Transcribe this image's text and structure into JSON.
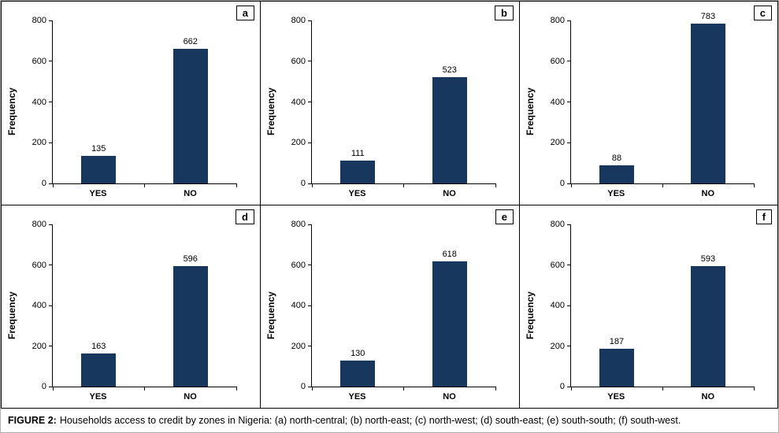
{
  "figure": {
    "caption_prefix": "FIGURE 2:",
    "caption_text": "Households access to credit by zones in Nigeria: (a) north-central; (b) north-east; (c) north-west; (d) south-east; (e) south-south; (f) south-west."
  },
  "style": {
    "bar_color": "#17375E",
    "axis_color": "#000000"
  },
  "chart_data": [
    {
      "type": "bar",
      "panel": "a",
      "zone": "north-central",
      "categories": [
        "YES",
        "NO"
      ],
      "values": [
        135,
        662
      ],
      "ylabel": "Frequency",
      "ylim": [
        0,
        800
      ],
      "yticks": [
        0,
        200,
        400,
        600,
        800
      ],
      "grid": false,
      "legend": false
    },
    {
      "type": "bar",
      "panel": "b",
      "zone": "north-east",
      "categories": [
        "YES",
        "NO"
      ],
      "values": [
        111,
        523
      ],
      "ylabel": "Frequency",
      "ylim": [
        0,
        800
      ],
      "yticks": [
        0,
        200,
        400,
        600,
        800
      ],
      "grid": false,
      "legend": false
    },
    {
      "type": "bar",
      "panel": "c",
      "zone": "north-west",
      "categories": [
        "YES",
        "NO"
      ],
      "values": [
        88,
        783
      ],
      "ylabel": "Frequency",
      "ylim": [
        0,
        800
      ],
      "yticks": [
        0,
        200,
        400,
        600,
        800
      ],
      "grid": false,
      "legend": false
    },
    {
      "type": "bar",
      "panel": "d",
      "zone": "south-east",
      "categories": [
        "YES",
        "NO"
      ],
      "values": [
        163,
        596
      ],
      "ylabel": "Frequency",
      "ylim": [
        0,
        800
      ],
      "yticks": [
        0,
        200,
        400,
        600,
        800
      ],
      "grid": false,
      "legend": false
    },
    {
      "type": "bar",
      "panel": "e",
      "zone": "south-south",
      "categories": [
        "YES",
        "NO"
      ],
      "values": [
        130,
        618
      ],
      "ylabel": "Frequency",
      "ylim": [
        0,
        800
      ],
      "yticks": [
        0,
        200,
        400,
        600,
        800
      ],
      "grid": false,
      "legend": false
    },
    {
      "type": "bar",
      "panel": "f",
      "zone": "south-west",
      "categories": [
        "YES",
        "NO"
      ],
      "values": [
        187,
        593
      ],
      "ylabel": "Frequency",
      "ylim": [
        0,
        800
      ],
      "yticks": [
        0,
        200,
        400,
        600,
        800
      ],
      "grid": false,
      "legend": false
    }
  ]
}
